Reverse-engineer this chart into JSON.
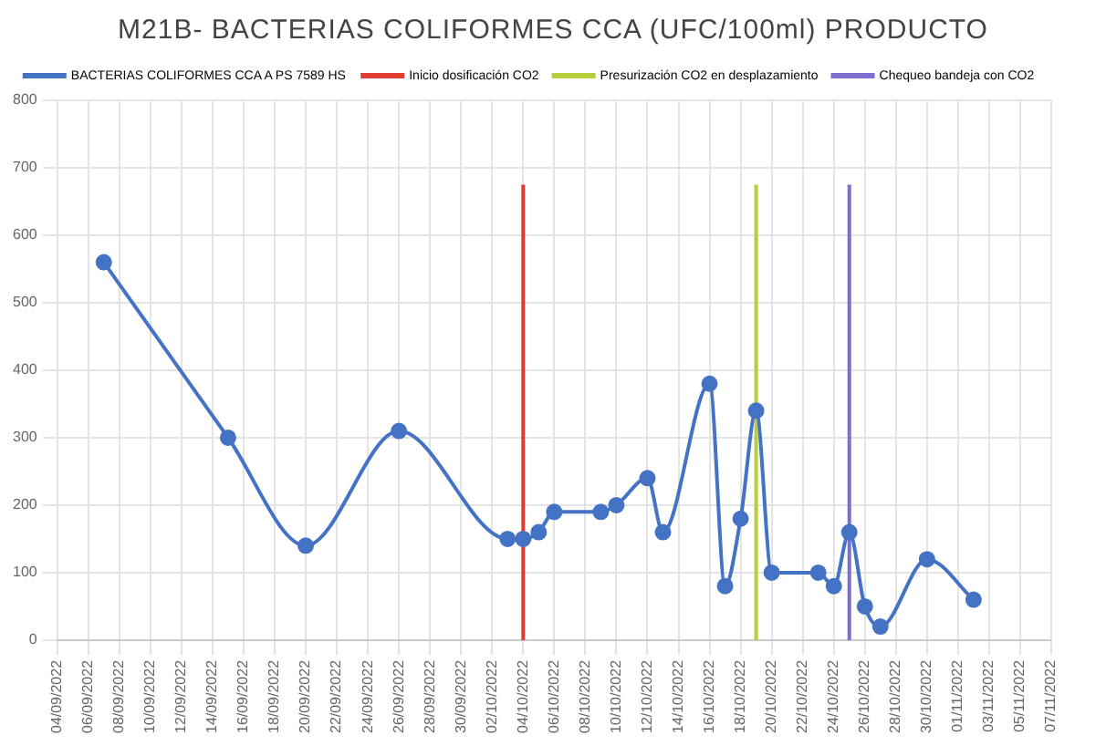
{
  "chart_data": {
    "type": "line",
    "title": "M21B- BACTERIAS COLIFORMES CCA (UFC/100ml) PRODUCTO",
    "legend": "top",
    "grid": true,
    "marker": "circle",
    "line_style": "solid",
    "xlim": [
      "2022-09-04",
      "2022-11-07"
    ],
    "xticks": [
      {
        "value": "2022-09-04",
        "label": "04/09/2022"
      },
      {
        "value": "2022-09-06",
        "label": "06/09/2022"
      },
      {
        "value": "2022-09-08",
        "label": "08/09/2022"
      },
      {
        "value": "2022-09-10",
        "label": "10/09/2022"
      },
      {
        "value": "2022-09-12",
        "label": "12/09/2022"
      },
      {
        "value": "2022-09-14",
        "label": "14/09/2022"
      },
      {
        "value": "2022-09-16",
        "label": "16/09/2022"
      },
      {
        "value": "2022-09-18",
        "label": "18/09/2022"
      },
      {
        "value": "2022-09-20",
        "label": "20/09/2022"
      },
      {
        "value": "2022-09-22",
        "label": "22/09/2022"
      },
      {
        "value": "2022-09-24",
        "label": "24/09/2022"
      },
      {
        "value": "2022-09-26",
        "label": "26/09/2022"
      },
      {
        "value": "2022-09-28",
        "label": "28/09/2022"
      },
      {
        "value": "2022-09-30",
        "label": "30/09/2022"
      },
      {
        "value": "2022-10-02",
        "label": "02/10/2022"
      },
      {
        "value": "2022-10-04",
        "label": "04/10/2022"
      },
      {
        "value": "2022-10-06",
        "label": "06/10/2022"
      },
      {
        "value": "2022-10-08",
        "label": "08/10/2022"
      },
      {
        "value": "2022-10-10",
        "label": "10/10/2022"
      },
      {
        "value": "2022-10-12",
        "label": "12/10/2022"
      },
      {
        "value": "2022-10-14",
        "label": "14/10/2022"
      },
      {
        "value": "2022-10-16",
        "label": "16/10/2022"
      },
      {
        "value": "2022-10-18",
        "label": "18/10/2022"
      },
      {
        "value": "2022-10-20",
        "label": "20/10/2022"
      },
      {
        "value": "2022-10-22",
        "label": "22/10/2022"
      },
      {
        "value": "2022-10-24",
        "label": "24/10/2022"
      },
      {
        "value": "2022-10-26",
        "label": "26/10/2022"
      },
      {
        "value": "2022-10-28",
        "label": "28/10/2022"
      },
      {
        "value": "2022-10-30",
        "label": "30/10/2022"
      },
      {
        "value": "2022-11-01",
        "label": "01/11/2022"
      },
      {
        "value": "2022-11-03",
        "label": "03/11/2022"
      },
      {
        "value": "2022-11-05",
        "label": "05/11/2022"
      },
      {
        "value": "2022-11-07",
        "label": "07/11/2022"
      }
    ],
    "ylim": [
      0,
      800
    ],
    "yticks": [
      0,
      100,
      200,
      300,
      400,
      500,
      600,
      700,
      800
    ],
    "series": [
      {
        "name": "BACTERIAS COLIFORMES CCA A PS 7589 HS",
        "color": "#4472c4",
        "x": [
          "2022-09-07",
          "2022-09-15",
          "2022-09-20",
          "2022-09-26",
          "2022-10-03",
          "2022-10-04",
          "2022-10-05",
          "2022-10-06",
          "2022-10-09",
          "2022-10-10",
          "2022-10-12",
          "2022-10-13",
          "2022-10-16",
          "2022-10-17",
          "2022-10-18",
          "2022-10-19",
          "2022-10-20",
          "2022-10-23",
          "2022-10-24",
          "2022-10-25",
          "2022-10-26",
          "2022-10-27",
          "2022-10-30",
          "2022-11-02"
        ],
        "values": [
          560,
          300,
          140,
          310,
          150,
          150,
          160,
          190,
          190,
          200,
          240,
          160,
          380,
          80,
          180,
          340,
          100,
          100,
          80,
          160,
          50,
          20,
          120,
          60
        ]
      },
      {
        "name": "Inicio dosificación CO2",
        "color": "#e03c31",
        "marker": "none",
        "x": [
          "2022-10-04",
          "2022-10-04"
        ],
        "values": [
          0,
          675
        ]
      },
      {
        "name": "Presurización CO2 en desplazamiento",
        "color": "#b5cf3a",
        "marker": "none",
        "x": [
          "2022-10-19",
          "2022-10-19"
        ],
        "values": [
          0,
          675
        ]
      },
      {
        "name": "Chequeo bandeja con CO2",
        "color": "#7b6fd0",
        "marker": "none",
        "x": [
          "2022-10-25",
          "2022-10-25"
        ],
        "values": [
          0,
          675
        ]
      }
    ]
  }
}
